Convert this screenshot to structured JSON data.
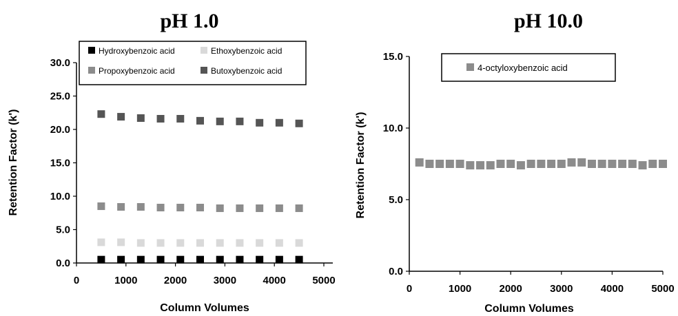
{
  "chart_data": [
    {
      "type": "scatter",
      "title": "pH 1.0",
      "xlabel": "Column Volumes",
      "ylabel": "Retention Factor (k')",
      "xlim": [
        0,
        5000
      ],
      "ylim": [
        0,
        30
      ],
      "xticks": [
        "0",
        "1000",
        "2000",
        "3000",
        "4000",
        "5000"
      ],
      "yticks": [
        "0.0",
        "5.0",
        "10.0",
        "15.0",
        "20.0",
        "25.0",
        "30.0"
      ],
      "grid": false,
      "legend": "top",
      "x": [
        500,
        900,
        1300,
        1700,
        2100,
        2500,
        2900,
        3300,
        3700,
        4100,
        4500
      ],
      "series": [
        {
          "name": "Hydroxybenzoic acid",
          "color": "#000000",
          "values": [
            0.5,
            0.5,
            0.5,
            0.5,
            0.5,
            0.5,
            0.5,
            0.5,
            0.5,
            0.5,
            0.5
          ]
        },
        {
          "name": "Ethoxybenzoic acid",
          "color": "#d9d9d9",
          "values": [
            3.1,
            3.1,
            3.0,
            3.0,
            3.0,
            3.0,
            3.0,
            3.0,
            3.0,
            3.0,
            3.0
          ]
        },
        {
          "name": "Propoxybenzoic acid",
          "color": "#8c8c8c",
          "values": [
            8.5,
            8.4,
            8.4,
            8.3,
            8.3,
            8.3,
            8.2,
            8.2,
            8.2,
            8.2,
            8.2
          ]
        },
        {
          "name": "Butoxybenzoic acid",
          "color": "#555555",
          "values": [
            22.3,
            21.9,
            21.7,
            21.6,
            21.6,
            21.3,
            21.2,
            21.2,
            21.0,
            21.0,
            20.9
          ]
        }
      ]
    },
    {
      "type": "scatter",
      "title": "pH 10.0",
      "xlabel": "Column Volumes",
      "ylabel": "Retention Factor (k')",
      "xlim": [
        0,
        5000
      ],
      "ylim": [
        0,
        15
      ],
      "xticks": [
        "0",
        "1000",
        "2000",
        "3000",
        "4000",
        "5000"
      ],
      "yticks": [
        "0.0",
        "5.0",
        "10.0",
        "15.0"
      ],
      "grid": false,
      "legend": "top",
      "x": [
        200,
        400,
        600,
        800,
        1000,
        1200,
        1400,
        1600,
        1800,
        2000,
        2200,
        2400,
        2600,
        2800,
        3000,
        3200,
        3400,
        3600,
        3800,
        4000,
        4200,
        4400,
        4600,
        4800,
        5000
      ],
      "series": [
        {
          "name": "4-octyloxybenzoic acid",
          "color": "#8c8c8c",
          "values": [
            7.6,
            7.5,
            7.5,
            7.5,
            7.5,
            7.4,
            7.4,
            7.4,
            7.5,
            7.5,
            7.4,
            7.5,
            7.5,
            7.5,
            7.5,
            7.6,
            7.6,
            7.5,
            7.5,
            7.5,
            7.5,
            7.5,
            7.4,
            7.5,
            7.5
          ]
        }
      ]
    }
  ]
}
